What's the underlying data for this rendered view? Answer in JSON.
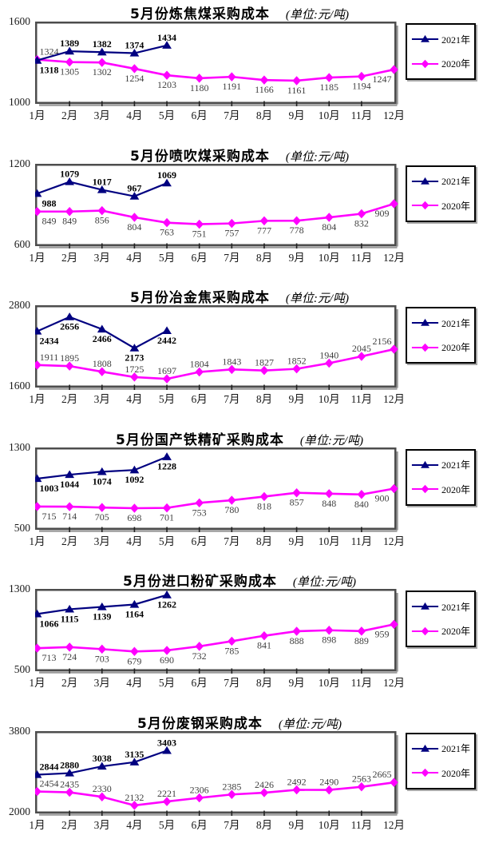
{
  "page": {
    "background": "#ffffff"
  },
  "colors": {
    "series_2021": "#000080",
    "series_2020": "#ff00ff",
    "label_2021": "#000000",
    "label_2020": "#404040",
    "plot_border": "#4d4d4d",
    "plot_shadow": "#9a9a9a",
    "legend_border": "#000000",
    "axis_text": "#1a1a1a"
  },
  "months": [
    "1月",
    "2月",
    "3月",
    "4月",
    "5月",
    "6月",
    "7月",
    "8月",
    "9月",
    "10月",
    "11月",
    "12月"
  ],
  "legend": {
    "position": "right",
    "items": [
      {
        "label": "2021年",
        "color": "#000080",
        "marker": "triangle"
      },
      {
        "label": "2020年",
        "color": "#ff00ff",
        "marker": "diamond"
      }
    ]
  },
  "chart_data": [
    {
      "type": "line",
      "title": "5月份炼焦煤采购成本",
      "unit": "(单位:元/吨)",
      "ylim": [
        1000,
        1600
      ],
      "ytick_labels": [
        "1600",
        "1000"
      ],
      "categories": [
        "1月",
        "2月",
        "3月",
        "4月",
        "5月",
        "6月",
        "7月",
        "8月",
        "9月",
        "10月",
        "11月",
        "12月"
      ],
      "series": [
        {
          "name": "2021年",
          "color": "#000080",
          "marker": "triangle",
          "label_side": "above",
          "label_side_overrides": {
            "0": "below"
          },
          "values": [
            1318,
            1389,
            1382,
            1374,
            1434
          ]
        },
        {
          "name": "2020年",
          "color": "#ff00ff",
          "marker": "diamond",
          "label_side": "below",
          "label_side_overrides": {
            "0": "above"
          },
          "values": [
            1324,
            1305,
            1302,
            1254,
            1203,
            1180,
            1191,
            1166,
            1161,
            1185,
            1194,
            1247
          ]
        }
      ]
    },
    {
      "type": "line",
      "title": "5月份喷吹煤采购成本",
      "unit": "(单位:元/吨)",
      "ylim": [
        600,
        1200
      ],
      "ytick_labels": [
        "1200",
        "600"
      ],
      "categories": [
        "1月",
        "2月",
        "3月",
        "4月",
        "5月",
        "6月",
        "7月",
        "8月",
        "9月",
        "10月",
        "11月",
        "12月"
      ],
      "series": [
        {
          "name": "2021年",
          "color": "#000080",
          "marker": "triangle",
          "label_side": "above",
          "label_side_overrides": {
            "0": "below"
          },
          "values": [
            988,
            1079,
            1017,
            967,
            1069
          ]
        },
        {
          "name": "2020年",
          "color": "#ff00ff",
          "marker": "diamond",
          "label_side": "below",
          "label_side_overrides": {},
          "values": [
            849,
            849,
            856,
            804,
            763,
            751,
            757,
            777,
            778,
            804,
            832,
            909
          ]
        }
      ]
    },
    {
      "type": "line",
      "title": "5月份冶金焦采购成本",
      "unit": "(单位:元/吨)",
      "ylim": [
        1600,
        2800
      ],
      "ytick_labels": [
        "2800",
        "1600"
      ],
      "categories": [
        "1月",
        "2月",
        "3月",
        "4月",
        "5月",
        "6月",
        "7月",
        "8月",
        "9月",
        "10月",
        "11月",
        "12月"
      ],
      "series": [
        {
          "name": "2021年",
          "color": "#000080",
          "marker": "triangle",
          "label_side": "below",
          "label_side_overrides": {},
          "values": [
            2434,
            2656,
            2466,
            2173,
            2442
          ]
        },
        {
          "name": "2020年",
          "color": "#ff00ff",
          "marker": "diamond",
          "label_side": "above",
          "label_side_overrides": {},
          "values": [
            1911,
            1895,
            1808,
            1725,
            1697,
            1804,
            1843,
            1827,
            1852,
            1940,
            2045,
            2156
          ]
        }
      ]
    },
    {
      "type": "line",
      "title": "5月份国产铁精矿采购成本",
      "unit": "(单位:元/吨)",
      "ylim": [
        500,
        1300
      ],
      "ytick_labels": [
        "1300",
        "500"
      ],
      "categories": [
        "1月",
        "2月",
        "3月",
        "4月",
        "5月",
        "6月",
        "7月",
        "8月",
        "9月",
        "10月",
        "11月",
        "12月"
      ],
      "series": [
        {
          "name": "2021年",
          "color": "#000080",
          "marker": "triangle",
          "label_side": "below",
          "label_side_overrides": {},
          "values": [
            1003,
            1044,
            1074,
            1092,
            1228
          ]
        },
        {
          "name": "2020年",
          "color": "#ff00ff",
          "marker": "diamond",
          "label_side": "below",
          "label_side_overrides": {},
          "values": [
            715,
            714,
            705,
            698,
            701,
            753,
            780,
            818,
            857,
            848,
            840,
            900
          ]
        }
      ]
    },
    {
      "type": "line",
      "title": "5月份进口粉矿采购成本",
      "unit": "(单位:元/吨)",
      "ylim": [
        500,
        1300
      ],
      "ytick_labels": [
        "1300",
        "500"
      ],
      "categories": [
        "1月",
        "2月",
        "3月",
        "4月",
        "5月",
        "6月",
        "7月",
        "8月",
        "9月",
        "10月",
        "11月",
        "12月"
      ],
      "series": [
        {
          "name": "2021年",
          "color": "#000080",
          "marker": "triangle",
          "label_side": "below",
          "label_side_overrides": {},
          "values": [
            1066,
            1115,
            1139,
            1164,
            1262
          ]
        },
        {
          "name": "2020年",
          "color": "#ff00ff",
          "marker": "diamond",
          "label_side": "below",
          "label_side_overrides": {},
          "values": [
            713,
            724,
            703,
            679,
            690,
            732,
            785,
            841,
            888,
            898,
            889,
            959
          ]
        }
      ]
    },
    {
      "type": "line",
      "title": "5月份废钢采购成本",
      "unit": "(单位:元/吨)",
      "ylim": [
        2000,
        3800
      ],
      "ytick_labels": [
        "3800",
        "2000"
      ],
      "categories": [
        "1月",
        "2月",
        "3月",
        "4月",
        "5月",
        "6月",
        "7月",
        "8月",
        "9月",
        "10月",
        "11月",
        "12月"
      ],
      "series": [
        {
          "name": "2021年",
          "color": "#000080",
          "marker": "triangle",
          "label_side": "above",
          "label_side_overrides": {},
          "values": [
            2844,
            2880,
            3038,
            3135,
            3403
          ]
        },
        {
          "name": "2020年",
          "color": "#ff00ff",
          "marker": "diamond",
          "label_side": "above",
          "label_side_overrides": {},
          "values": [
            2454,
            2435,
            2330,
            2132,
            2221,
            2306,
            2385,
            2426,
            2492,
            2490,
            2563,
            2665
          ]
        }
      ]
    }
  ]
}
